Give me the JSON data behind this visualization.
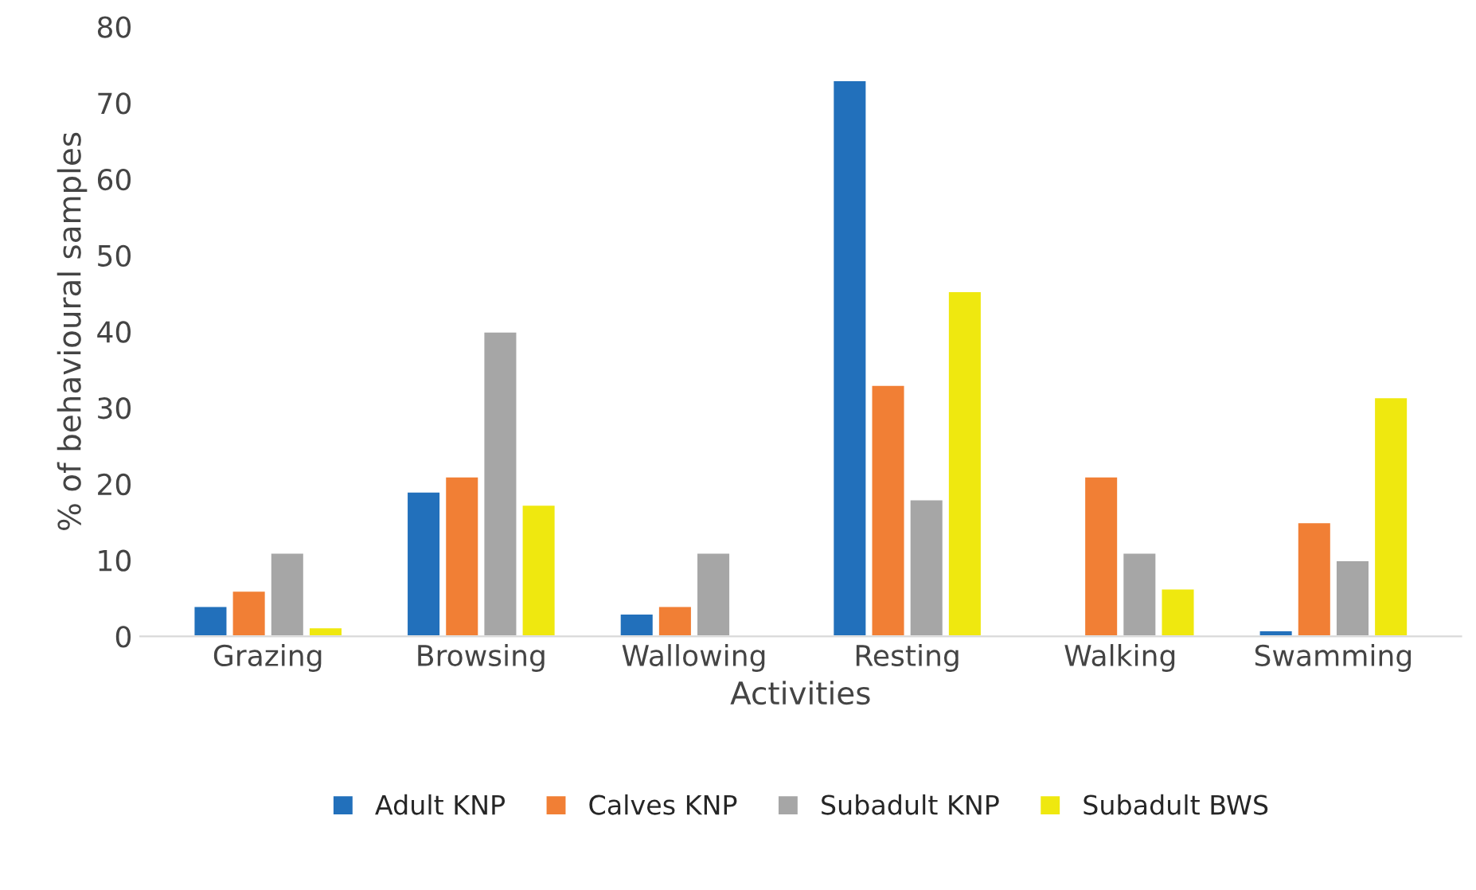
{
  "chart_data": {
    "type": "bar",
    "xlabel": "Activities",
    "ylabel": "% of behavioural samples",
    "categories": [
      "Grazing",
      "Browsing",
      "Wallowing",
      "Resting",
      "Walking",
      "Swamming"
    ],
    "series": [
      {
        "name": "Adult KNP",
        "color": "#2270bb",
        "values": [
          4,
          19,
          3,
          73,
          null,
          0.8
        ]
      },
      {
        "name": "Calves KNP",
        "color": "#f17f35",
        "values": [
          6,
          21,
          4,
          33,
          21,
          15
        ]
      },
      {
        "name": "Subadult KNP",
        "color": "#a6a6a6",
        "values": [
          11,
          40,
          11,
          18,
          11,
          10
        ]
      },
      {
        "name": "Subadult BWS",
        "color": "#efe80f",
        "values": [
          1.2,
          17.3,
          null,
          45.3,
          6.3,
          31.4
        ]
      }
    ],
    "ylim": [
      0,
      80
    ],
    "yticks": [
      0,
      10,
      20,
      30,
      40,
      50,
      60,
      70,
      80
    ],
    "grid": false,
    "legend": "bottom"
  }
}
